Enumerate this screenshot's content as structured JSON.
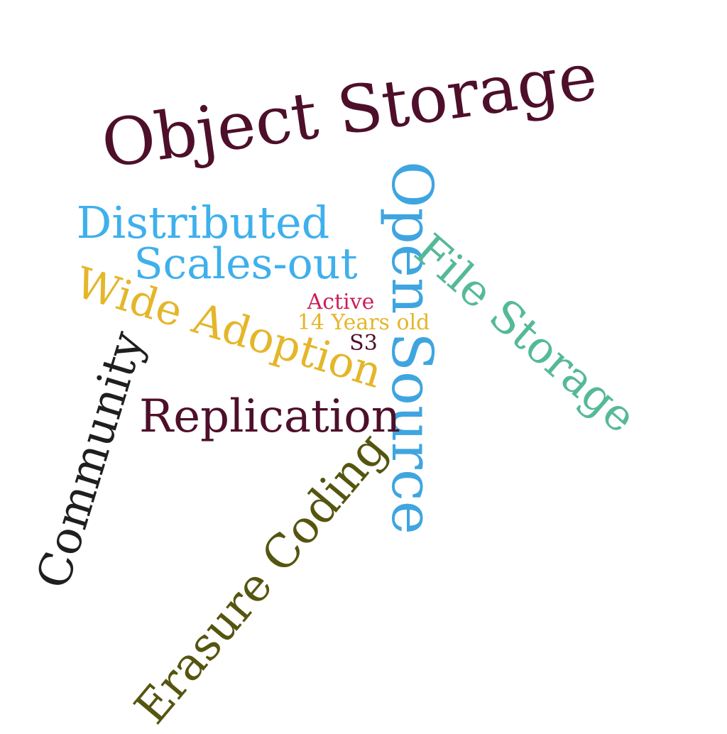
{
  "word_cloud": {
    "words": [
      {
        "id": "object-storage",
        "text": "Object Storage",
        "color": "#4e0f2a"
      },
      {
        "id": "open-source",
        "text": "Open Source",
        "color": "#3fa5e0"
      },
      {
        "id": "distributed",
        "text": "Distributed",
        "color": "#3fb0ec"
      },
      {
        "id": "scales-out",
        "text": "Scales-out",
        "color": "#3fb0ec"
      },
      {
        "id": "wide-adoption",
        "text": "Wide Adoption",
        "color": "#e4b62a"
      },
      {
        "id": "file-storage",
        "text": "File Storage",
        "color": "#55b998"
      },
      {
        "id": "community",
        "text": "Community",
        "color": "#1f1f1f"
      },
      {
        "id": "replication",
        "text": "Replication",
        "color": "#4e0f2a"
      },
      {
        "id": "erasure-coding",
        "text": "Erasure Coding",
        "color": "#55550f"
      },
      {
        "id": "active",
        "text": "Active",
        "color": "#cc1f5a"
      },
      {
        "id": "14-years-old",
        "text": "14 Years old",
        "color": "#e4b62a"
      },
      {
        "id": "s3",
        "text": "S3",
        "color": "#4e0f2a"
      }
    ]
  }
}
